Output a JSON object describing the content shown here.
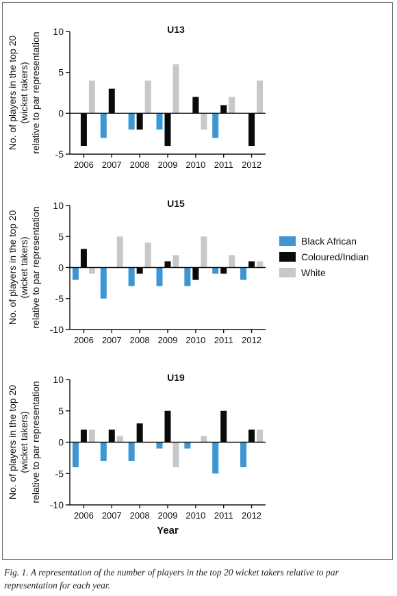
{
  "colors": {
    "black_african": "#3d96d4",
    "coloured_indian": "#0a0a0a",
    "white": "#c8c8c8"
  },
  "legend": {
    "items": [
      {
        "label": "Black African",
        "color": "#3d96d4"
      },
      {
        "label": "Coloured/Indian",
        "color": "#0a0a0a"
      },
      {
        "label": "White",
        "color": "#c8c8c8"
      }
    ]
  },
  "caption": "Fig. 1. A representation of the number of players in the top 20 wicket takers relative to par representation for each year.",
  "chart_data": [
    {
      "type": "bar",
      "title": "U13",
      "ylabel": "No. of players in the top 20 (wicket takers) relative to par representation",
      "xlabel": "",
      "ylim": [
        -5,
        10
      ],
      "yticks": [
        10,
        5,
        0,
        -5
      ],
      "categories": [
        "2006",
        "2007",
        "2008",
        "2009",
        "2010",
        "2011",
        "2012"
      ],
      "series": [
        {
          "name": "Black African",
          "values": [
            0,
            -3,
            -2,
            -2,
            0,
            -3,
            0
          ]
        },
        {
          "name": "Coloured/Indian",
          "values": [
            -4,
            3,
            -2,
            -4,
            2,
            1,
            -4
          ]
        },
        {
          "name": "White",
          "values": [
            4,
            0,
            4,
            6,
            -2,
            2,
            4
          ]
        }
      ]
    },
    {
      "type": "bar",
      "title": "U15",
      "ylabel": "No. of players in the top 20 (wicket takers) relative to par representation",
      "xlabel": "",
      "ylim": [
        -10,
        10
      ],
      "yticks": [
        10,
        5,
        0,
        -5,
        -10
      ],
      "categories": [
        "2006",
        "2007",
        "2008",
        "2009",
        "2010",
        "2011",
        "2012"
      ],
      "series": [
        {
          "name": "Black African",
          "values": [
            -2,
            -5,
            -3,
            -3,
            -3,
            -1,
            -2
          ]
        },
        {
          "name": "Coloured/Indian",
          "values": [
            3,
            0,
            -1,
            1,
            -2,
            -1,
            1
          ]
        },
        {
          "name": "White",
          "values": [
            -1,
            5,
            4,
            2,
            5,
            2,
            1
          ]
        }
      ]
    },
    {
      "type": "bar",
      "title": "U19",
      "ylabel": "No. of players in the top 20 (wicket takers) relative to par representation",
      "xlabel": "Year",
      "ylim": [
        -10,
        10
      ],
      "yticks": [
        10,
        5,
        0,
        -5,
        -10
      ],
      "categories": [
        "2006",
        "2007",
        "2008",
        "2009",
        "2010",
        "2011",
        "2012"
      ],
      "series": [
        {
          "name": "Black African",
          "values": [
            -4,
            -3,
            -3,
            -1,
            -1,
            -5,
            -4
          ]
        },
        {
          "name": "Coloured/Indian",
          "values": [
            2,
            2,
            3,
            5,
            0,
            5,
            2
          ]
        },
        {
          "name": "White",
          "values": [
            2,
            1,
            0,
            -4,
            1,
            0,
            2
          ]
        }
      ]
    }
  ]
}
